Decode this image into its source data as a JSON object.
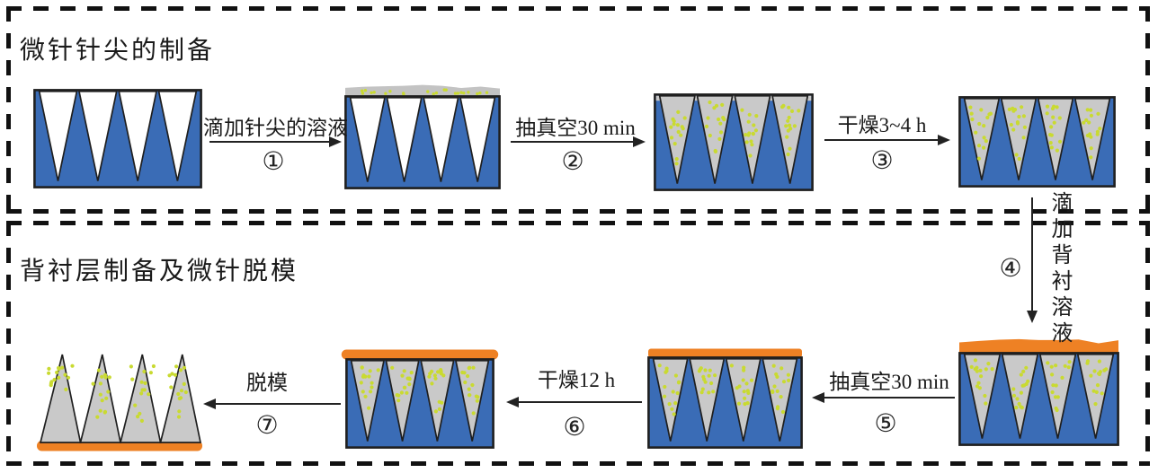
{
  "colors": {
    "mold_blue": "#3a6cb6",
    "needle_gray": "#c9c9c9",
    "dot_yellow": "#c9da31",
    "backing_orange": "#ee8124",
    "outline": "#1f1f1f",
    "border_dash": "#111111",
    "ink": "#1a1a1a",
    "bg": "#ffffff"
  },
  "panels": [
    {
      "title": "微针针尖的制备"
    },
    {
      "title": "背衬层制备及微针脱模"
    }
  ],
  "steps": [
    {
      "label": "滴加针尖的溶液",
      "number": "①"
    },
    {
      "label": "抽真空30 min",
      "number": "②"
    },
    {
      "label": "干燥3~4 h",
      "number": "③"
    },
    {
      "label": "滴加背衬溶液",
      "number": "④"
    },
    {
      "label": "抽真空30 min",
      "number": "⑤"
    },
    {
      "label": "干燥12 h",
      "number": "⑥"
    },
    {
      "label": "脱模",
      "number": "⑦"
    }
  ],
  "figures": [
    {
      "name": "empty-mold-figure"
    },
    {
      "name": "mold-with-tip-solution-figure"
    },
    {
      "name": "mold-filled-tips-figure"
    },
    {
      "name": "mold-dried-tips-figure"
    },
    {
      "name": "mold-backing-solution-figure"
    },
    {
      "name": "mold-backing-vacuum-figure"
    },
    {
      "name": "mold-backing-dried-figure"
    },
    {
      "name": "demolded-microneedle-patch-figure"
    }
  ]
}
